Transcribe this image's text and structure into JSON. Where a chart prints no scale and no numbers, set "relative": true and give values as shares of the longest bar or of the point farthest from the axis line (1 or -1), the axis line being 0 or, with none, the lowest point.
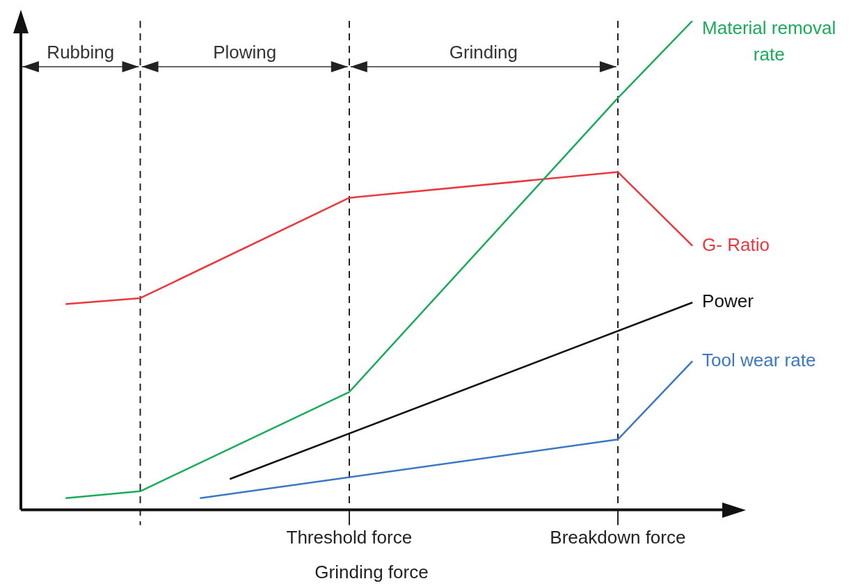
{
  "chart_data": {
    "type": "line",
    "relative": true,
    "xlabel": "Grinding force",
    "tick_labels": "x",
    "legend": false,
    "marker": "none",
    "line_style": "solid",
    "categories": [
      null,
      null,
      null,
      null,
      null,
      null,
      null,
      null,
      null,
      null,
      null,
      null,
      null,
      null,
      null,
      null,
      null,
      null,
      null,
      null,
      null,
      null,
      "Threshold force",
      null,
      null,
      null,
      null,
      null,
      null,
      null,
      null,
      null,
      null,
      null,
      null,
      null,
      null,
      null,
      null,
      null,
      "Breakdown force",
      null,
      null,
      null,
      null,
      null,
      null,
      null
    ],
    "series": [
      {
        "name": "Material removal rate",
        "color": "#1aab5a",
        "values": [
          null,
          null,
          null,
          0.024,
          null,
          null,
          null,
          null,
          0.038,
          null,
          null,
          null,
          null,
          null,
          null,
          null,
          null,
          null,
          null,
          null,
          null,
          null,
          0.241,
          null,
          null,
          null,
          null,
          null,
          null,
          null,
          null,
          null,
          null,
          null,
          null,
          null,
          null,
          null,
          null,
          null,
          0.842,
          null,
          null,
          null,
          null,
          1,
          null,
          null
        ]
      },
      {
        "name": "G- Ratio",
        "color": "#e8393e",
        "values": [
          null,
          null,
          null,
          0.421,
          null,
          null,
          null,
          null,
          0.433,
          null,
          null,
          null,
          null,
          null,
          null,
          null,
          null,
          null,
          null,
          null,
          null,
          null,
          0.638,
          null,
          null,
          null,
          null,
          null,
          null,
          null,
          null,
          null,
          null,
          null,
          null,
          null,
          null,
          null,
          null,
          null,
          0.691,
          null,
          null,
          null,
          null,
          0.54,
          null,
          null
        ]
      },
      {
        "name": "Power",
        "color": "#111111",
        "values": [
          null,
          null,
          null,
          null,
          null,
          null,
          null,
          null,
          null,
          null,
          null,
          null,
          null,
          null,
          0.063,
          null,
          null,
          null,
          null,
          null,
          null,
          null,
          null,
          null,
          null,
          null,
          null,
          null,
          null,
          null,
          null,
          null,
          null,
          null,
          null,
          null,
          null,
          null,
          null,
          null,
          null,
          null,
          null,
          null,
          null,
          0.424,
          null,
          null
        ]
      },
      {
        "name": "Tool wear rate",
        "color": "#3a78c4",
        "values": [
          null,
          null,
          null,
          null,
          null,
          null,
          null,
          null,
          null,
          null,
          null,
          null,
          0.024,
          null,
          null,
          null,
          null,
          null,
          null,
          null,
          null,
          null,
          null,
          null,
          null,
          null,
          null,
          null,
          null,
          null,
          null,
          null,
          null,
          null,
          null,
          null,
          null,
          null,
          null,
          null,
          0.144,
          null,
          null,
          null,
          null,
          0.304,
          null,
          null
        ]
      }
    ],
    "grid": "x",
    "annotations": [
      "Rubbing",
      "Plowing",
      "Grinding"
    ]
  }
}
